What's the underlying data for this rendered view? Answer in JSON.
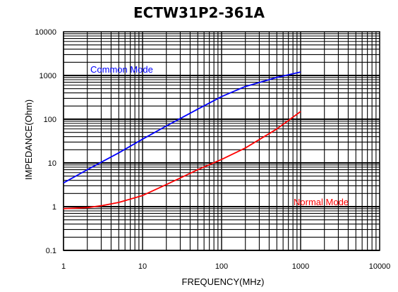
{
  "chart_data": {
    "type": "line",
    "title": "ECTW31P2-361A",
    "xlabel": "FREQUENCY(MHz)",
    "ylabel": "IMPEDANCE(Ohm)",
    "x_scale": "log",
    "y_scale": "log",
    "xlim": [
      1,
      10000
    ],
    "ylim": [
      0.1,
      10000
    ],
    "x_ticks": [
      "1",
      "10",
      "100",
      "1000",
      "10000"
    ],
    "y_ticks": [
      "0.1",
      "1",
      "10",
      "100",
      "1000",
      "10000"
    ],
    "grid": true,
    "series": [
      {
        "name": "Common Mode",
        "color": "#0000ff",
        "x": [
          1,
          2,
          5,
          10,
          20,
          50,
          100,
          200,
          500,
          1000
        ],
        "y": [
          3.5,
          7,
          17,
          35,
          70,
          170,
          330,
          560,
          900,
          1200
        ]
      },
      {
        "name": "Normal Mode",
        "color": "#ff0000",
        "x": [
          1,
          2,
          3,
          5,
          10,
          20,
          50,
          100,
          200,
          500,
          1000
        ],
        "y": [
          0.9,
          0.95,
          1.05,
          1.25,
          1.8,
          3.2,
          7,
          12,
          22,
          60,
          150
        ]
      }
    ]
  }
}
